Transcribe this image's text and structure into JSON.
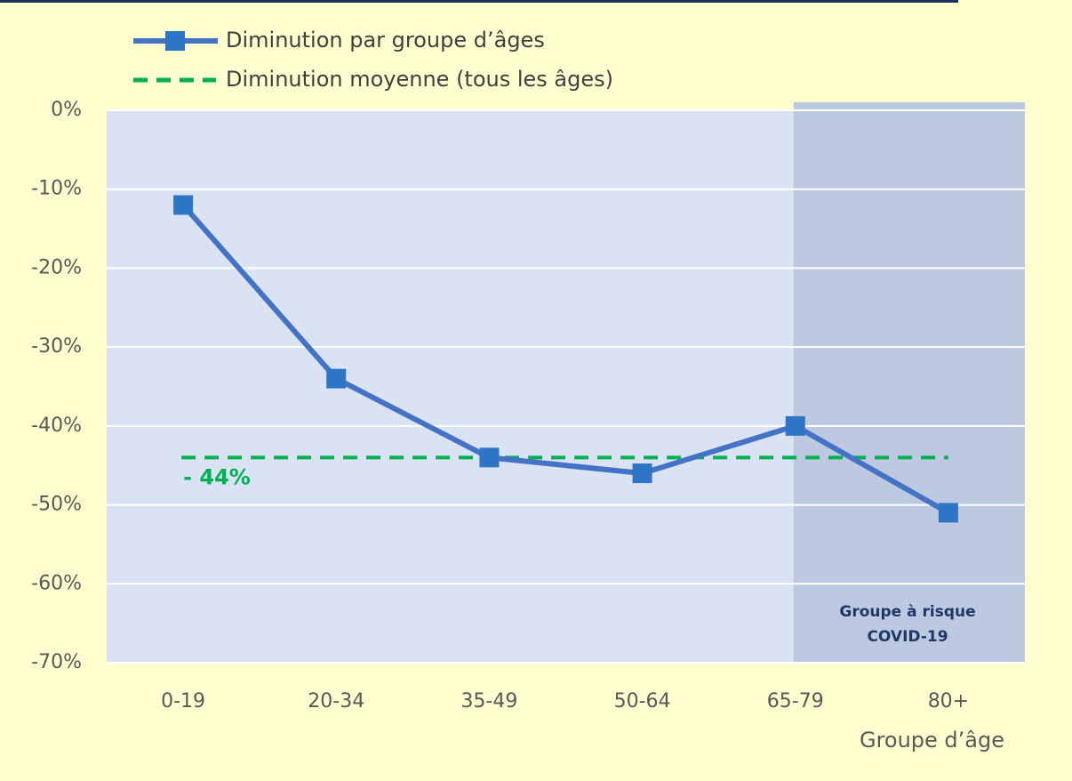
{
  "chart_data": {
    "type": "line",
    "categories": [
      "0-19",
      "20-34",
      "35-49",
      "50-64",
      "65-79",
      "80+"
    ],
    "series": [
      {
        "name": "Diminution par groupe d’âges",
        "color": "#4472c4",
        "marker_color": "#2e75c6",
        "values": [
          -12,
          -34,
          -44,
          -46,
          -40,
          -51
        ]
      }
    ],
    "reference_line": {
      "name": "Diminution moyenne (tous les âges)",
      "value": -44,
      "label": "- 44%",
      "color": "#00b050"
    },
    "ylim": [
      -70,
      0
    ],
    "yticks": [
      {
        "value": 0,
        "label": "0%"
      },
      {
        "value": -10,
        "label": "-10%"
      },
      {
        "value": -20,
        "label": "-20%"
      },
      {
        "value": -30,
        "label": "-30%"
      },
      {
        "value": -40,
        "label": "-40%"
      },
      {
        "value": -50,
        "label": "-50%"
      },
      {
        "value": -60,
        "label": "-60%"
      },
      {
        "value": -70,
        "label": "-70%"
      }
    ],
    "grid": true,
    "xlabel": "Groupe d’âge",
    "annotation": [
      "Groupe à risque",
      "COVID-19"
    ]
  }
}
